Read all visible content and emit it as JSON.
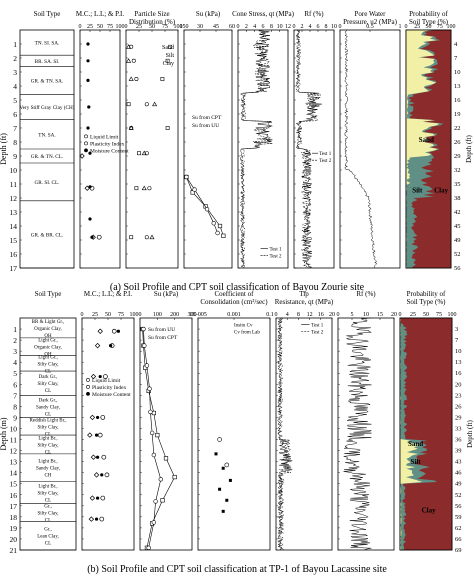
{
  "chart_data": [
    {
      "type": "multi-panel",
      "caption_letter": "(a)",
      "caption": "Soil Profile and CPT soil classification of Bayou Zourie site",
      "ylabel": "Depth (ft)",
      "ylabel_right": "Depth (ft)",
      "ylim": [
        0,
        17
      ],
      "y_ticks": [
        1,
        2,
        3,
        4,
        5,
        6,
        7,
        8,
        9,
        10,
        11,
        12,
        13,
        14,
        15,
        16,
        17
      ],
      "right_ticks": [
        4,
        7,
        10,
        13,
        16,
        19,
        22,
        26,
        29,
        32,
        35,
        38,
        42,
        45,
        49,
        52,
        56
      ],
      "panels": [
        {
          "id": "soil-type",
          "title": "Soil Type"
        },
        {
          "id": "mc",
          "title": "M.C.; L.L; & P.I.",
          "xticks": [
            "0",
            "25",
            "50",
            "75",
            "100"
          ],
          "xlim": [
            0,
            100
          ],
          "legend": [
            "Liquid Limit",
            "Plasticity Index",
            "Moisture Content"
          ]
        },
        {
          "id": "psd",
          "title": "Particle Size Distribution (%)",
          "xticks": [
            "0",
            "25",
            "50",
            "75",
            "100"
          ],
          "xlim": [
            0,
            100
          ],
          "legend": [
            "Sand",
            "Silt",
            "Clay"
          ]
        },
        {
          "id": "su",
          "title": "Su (kPa)",
          "xticks": [
            "150",
            "30",
            "45",
            "60"
          ],
          "legend": [
            "Su from CPT",
            "Su from UU"
          ]
        },
        {
          "id": "cone",
          "title": "Cone Stress, qt (MPa)",
          "xticks": [
            "0",
            "2",
            "4",
            "6",
            "8",
            "10",
            "12"
          ],
          "xlim": [
            0,
            12
          ],
          "legend": [
            "Test 1",
            "Test 2"
          ]
        },
        {
          "id": "rf",
          "title": "Rf (%)",
          "xticks": [
            "0",
            "2",
            "4",
            "6",
            "8",
            "10"
          ],
          "xlim": [
            0,
            10
          ],
          "legend": [
            "Test 1",
            "Test 2"
          ]
        },
        {
          "id": "pwp",
          "title": "Pore Water Pressure, u2 (MPa)",
          "xticks": [
            "0",
            "0.5",
            "1"
          ],
          "xlim": [
            0,
            1
          ]
        },
        {
          "id": "prob",
          "title": "Probability of Soil Type (%)",
          "xticks": [
            "0",
            "25",
            "50",
            "75",
            "100"
          ],
          "labels": [
            "Sand",
            "Silt",
            "Clay"
          ]
        }
      ],
      "layers": [
        {
          "name": "TN. SI. SA.",
          "top": 0,
          "bot": 1.8
        },
        {
          "name": "BR. SA. SI.",
          "top": 1.8,
          "bot": 2.6
        },
        {
          "name": "GR. & TN. SA.",
          "top": 2.6,
          "bot": 4.6
        },
        {
          "name": "Very Stiff Gray Clay (CH)",
          "top": 4.6,
          "bot": 6.4
        },
        {
          "name": "TN. SA.",
          "top": 6.4,
          "bot": 8.5
        },
        {
          "name": "GR. & TN. CL.",
          "top": 8.5,
          "bot": 9.5
        },
        {
          "name": "GR. SI. CL.",
          "top": 9.5,
          "bot": 12.2
        },
        {
          "name": "GR. & BR. CL.",
          "top": 12.2,
          "bot": 17
        }
      ],
      "mc_points": {
        "liquid_limit": [
          [
            30,
            11.3
          ],
          [
            48,
            14.8
          ]
        ],
        "plasticity_index": [
          [
            5,
            9.0
          ],
          [
            18,
            11.3
          ],
          [
            33,
            14.8
          ]
        ],
        "moisture": [
          [
            20,
            1
          ],
          [
            20,
            2.2
          ],
          [
            20,
            3.6
          ],
          [
            22,
            5.5
          ],
          [
            20,
            7.0
          ],
          [
            25,
            8.8
          ],
          [
            25,
            11.2
          ],
          [
            25,
            13.5
          ],
          [
            30,
            14.8
          ]
        ]
      },
      "psd_points": {
        "sand": [
          [
            85,
            1.2
          ],
          [
            80,
            2.2
          ],
          [
            70,
            3.5
          ],
          [
            5,
            5.3
          ],
          [
            80,
            7.0
          ],
          [
            25,
            8.8
          ],
          [
            20,
            11.3
          ],
          [
            10,
            14.8
          ]
        ],
        "silt": [
          [
            10,
            1.2
          ],
          [
            15,
            2.2
          ],
          [
            20,
            3.5
          ],
          [
            40,
            5.3
          ],
          [
            10,
            7.0
          ],
          [
            40,
            8.8
          ],
          [
            45,
            11.3
          ],
          [
            40,
            14.8
          ]
        ],
        "clay": [
          [
            5,
            1.2
          ],
          [
            5,
            2.2
          ],
          [
            10,
            3.5
          ],
          [
            55,
            5.3
          ],
          [
            10,
            7.0
          ],
          [
            35,
            8.8
          ],
          [
            35,
            11.3
          ],
          [
            50,
            14.8
          ]
        ]
      },
      "su_series": {
        "cpt": [
          [
            0.05,
            10.5
          ],
          [
            0.18,
            11.6
          ],
          [
            0.45,
            12.6
          ],
          [
            0.75,
            14.0
          ],
          [
            0.82,
            14.7
          ]
        ],
        "uu": [
          [
            0.05,
            10.5
          ],
          [
            0.22,
            11.4
          ],
          [
            0.48,
            12.8
          ],
          [
            0.62,
            13.8
          ],
          [
            0.7,
            14.5
          ]
        ]
      }
    },
    {
      "type": "multi-panel",
      "caption_letter": "(b)",
      "caption": "Soil Profile and CPT soil classification at TP-1 of Bayou Lacassine site",
      "ylabel": "Depth (m)",
      "ylabel_right": "Depth (ft)",
      "ylim": [
        0,
        21
      ],
      "y_ticks": [
        1,
        2,
        3,
        4,
        5,
        6,
        7,
        8,
        9,
        10,
        11,
        12,
        13,
        14,
        15,
        16,
        17,
        18,
        19,
        20,
        21
      ],
      "right_ticks": [
        3,
        7,
        10,
        13,
        16,
        20,
        23,
        26,
        29,
        33,
        36,
        39,
        43,
        46,
        49,
        52,
        56,
        59,
        62,
        66,
        69
      ],
      "panels": [
        {
          "id": "soil-type",
          "title": "Soil Type"
        },
        {
          "id": "mc",
          "title": "M.C.; L.L; & P.I.",
          "xticks": [
            "0",
            "25",
            "50",
            "75",
            "100"
          ],
          "xlim": [
            0,
            100
          ],
          "legend": [
            "Liquid Limit",
            "Plasticity Index",
            "Moisture Content"
          ]
        },
        {
          "id": "su",
          "title": "Su (kPa)",
          "xticks": [
            "0",
            "100",
            "200",
            "300"
          ],
          "xlim": [
            0,
            300
          ],
          "legend": [
            "Su from UU",
            "Su from CPT"
          ]
        },
        {
          "id": "cc",
          "title": "Coefficient of Consolidation (cm²/sec)",
          "xticks": [
            "1E-005",
            "0.001",
            "0.1"
          ],
          "legend": [
            "Insitu Cv",
            "Cv from Lab"
          ]
        },
        {
          "id": "tip",
          "title": "Tip Resistance, qt (MPa)",
          "xticks": [
            "0",
            "4",
            "8",
            "12",
            "16",
            "20"
          ],
          "xlim": [
            0,
            20
          ],
          "legend": [
            "Test 1",
            "Test 2"
          ]
        },
        {
          "id": "rf",
          "title": "Rf (%)",
          "xticks": [
            "0",
            "5",
            "10",
            "15",
            "20"
          ],
          "xlim": [
            0,
            20
          ]
        },
        {
          "id": "prob",
          "title": "Probability of Soil Type (%)",
          "xticks": [
            "0",
            "25",
            "50",
            "75",
            "100"
          ],
          "labels": [
            "Sand",
            "Silt",
            "Clay"
          ]
        }
      ],
      "layers": [
        {
          "name": "BR & Light Gr., Organic Clay, OH",
          "top": 0,
          "bot": 1.8
        },
        {
          "name": "Light Gr., Organic Clay, OH",
          "top": 1.8,
          "bot": 3.4
        },
        {
          "name": "Light Gr., Silty Clay, CL",
          "top": 3.4,
          "bot": 4.8
        },
        {
          "name": "Dark Gr., Silty Clay, CL",
          "top": 4.8,
          "bot": 7.0
        },
        {
          "name": "Dark Gr., Sandy Clay, CL",
          "top": 7.0,
          "bot": 9.0
        },
        {
          "name": "Reddish Light Br., Silty Clay, CL",
          "top": 9.0,
          "bot": 10.6
        },
        {
          "name": "Light Br., Silty Clay, CL",
          "top": 10.6,
          "bot": 12.3
        },
        {
          "name": "Light Br., Sandy Clay, CH",
          "top": 12.3,
          "bot": 14.8
        },
        {
          "name": "Light Br., Silty Clay, CL",
          "top": 14.8,
          "bot": 16.8
        },
        {
          "name": "Gr., Silty Clay, CL",
          "top": 16.8,
          "bot": 18.4
        },
        {
          "name": "Gr., Lean Clay, CL",
          "top": 18.4,
          "bot": 21
        }
      ],
      "mc_points": {
        "liquid_limit": [
          [
            62,
            1.2
          ],
          [
            58,
            2.5
          ],
          [
            45,
            5.3
          ],
          [
            40,
            9.0
          ],
          [
            35,
            10.6
          ],
          [
            42,
            12.6
          ],
          [
            48,
            14.2
          ],
          [
            40,
            16.3
          ],
          [
            38,
            18.2
          ]
        ],
        "plasticity_index": [
          [
            35,
            1.2
          ],
          [
            30,
            2.5
          ],
          [
            22,
            5.3
          ],
          [
            20,
            9.0
          ],
          [
            15,
            10.6
          ],
          [
            22,
            12.6
          ],
          [
            28,
            14.2
          ],
          [
            20,
            16.3
          ],
          [
            18,
            18.2
          ]
        ],
        "moisture": [
          [
            70,
            1.2
          ],
          [
            55,
            2.5
          ],
          [
            35,
            5.3
          ],
          [
            30,
            9.0
          ],
          [
            28,
            10.6
          ],
          [
            30,
            12.6
          ],
          [
            38,
            14.2
          ],
          [
            30,
            16.3
          ],
          [
            28,
            18.2
          ]
        ]
      },
      "su_series": {
        "uu": [
          [
            20,
            1
          ],
          [
            25,
            2.5
          ],
          [
            40,
            4.3
          ],
          [
            55,
            6.4
          ],
          [
            60,
            8.5
          ],
          [
            70,
            10.4
          ],
          [
            80,
            12.4
          ],
          [
            120,
            14.6
          ],
          [
            90,
            16.6
          ],
          [
            80,
            18.5
          ],
          [
            50,
            20.8
          ]
        ],
        "cpt": [
          [
            15,
            1
          ],
          [
            20,
            2.5
          ],
          [
            30,
            4.5
          ],
          [
            50,
            6.6
          ],
          [
            80,
            8.6
          ],
          [
            100,
            10.6
          ],
          [
            150,
            12.7
          ],
          [
            200,
            14.4
          ],
          [
            130,
            16.5
          ],
          [
            70,
            18.6
          ],
          [
            40,
            20.8
          ]
        ]
      },
      "cc_points": {
        "insitu": [
          [
            0.3,
            11.0
          ],
          [
            0.4,
            13.3
          ]
        ],
        "lab": [
          [
            0.25,
            12.3
          ],
          [
            0.35,
            13.6
          ],
          [
            0.45,
            14.7
          ],
          [
            0.3,
            15.5
          ],
          [
            0.4,
            16.5
          ],
          [
            0.35,
            17.5
          ]
        ]
      }
    }
  ]
}
